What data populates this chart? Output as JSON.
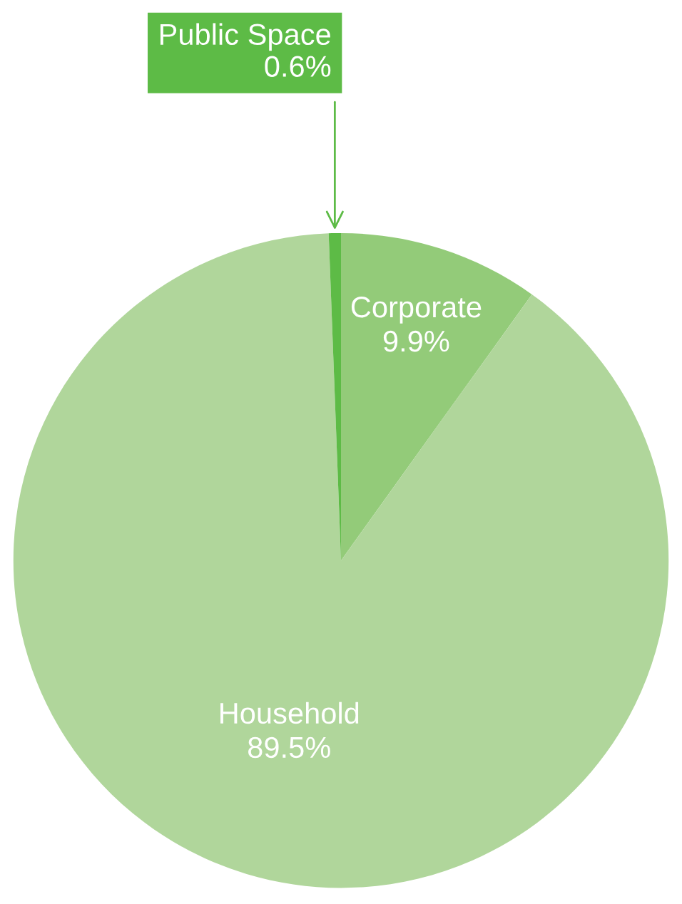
{
  "chart_data": {
    "type": "pie",
    "categories": [
      "Corporate",
      "Household",
      "Public Space"
    ],
    "values": [
      9.9,
      89.5,
      0.6
    ],
    "colors": [
      "#93cb79",
      "#b0d69b",
      "#5dbb46"
    ],
    "value_labels": [
      "9.9%",
      "89.5%",
      "0.6%"
    ]
  }
}
